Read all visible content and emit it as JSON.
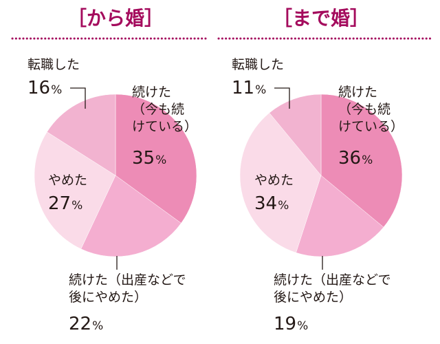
{
  "chart_data": [
    {
      "type": "pie",
      "title": "［から婚］",
      "colors": {
        "title": "#a40b5d",
        "dots": "#a40b5d",
        "leader": "#231815"
      },
      "slices": [
        {
          "label": "続けた（今も続けている）",
          "label_lines": [
            "続けた",
            "（今も続",
            "けている）"
          ],
          "value": 35,
          "display": "35",
          "color": "#ed8cb6"
        },
        {
          "label": "続けた（出産などで後にやめた）",
          "label_lines": [
            "続けた（出産などで",
            "後にやめた）"
          ],
          "value": 22,
          "display": "22",
          "color": "#f4aed0"
        },
        {
          "label": "やめた",
          "label_lines": [
            "やめた"
          ],
          "value": 27,
          "display": "27",
          "color": "#fadbe8"
        },
        {
          "label": "転職した",
          "label_lines": [
            "転職した"
          ],
          "value": 16,
          "display": "16",
          "color": "#f2b3d0"
        }
      ]
    },
    {
      "type": "pie",
      "title": "［まで婚］",
      "colors": {
        "title": "#a40b5d",
        "dots": "#a40b5d",
        "leader": "#231815"
      },
      "slices": [
        {
          "label": "続けた（今も続けている）",
          "label_lines": [
            "続けた",
            "（今も続",
            "けている）"
          ],
          "value": 36,
          "display": "36",
          "color": "#ed8cb6"
        },
        {
          "label": "続けた（出産などで後にやめた）",
          "label_lines": [
            "続けた（出産などで",
            "後にやめた）"
          ],
          "value": 19,
          "display": "19",
          "color": "#f4aed0"
        },
        {
          "label": "やめた",
          "label_lines": [
            "やめた"
          ],
          "value": 34,
          "display": "34",
          "color": "#fadbe8"
        },
        {
          "label": "転職した",
          "label_lines": [
            "転職した"
          ],
          "value": 11,
          "display": "11",
          "color": "#f2b3d0"
        }
      ]
    }
  ],
  "unit": "%"
}
